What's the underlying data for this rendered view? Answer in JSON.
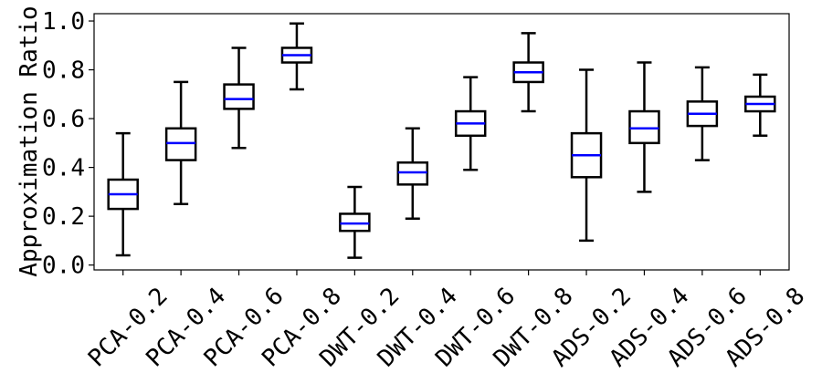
{
  "chart_data": {
    "type": "box",
    "title": "",
    "xlabel": "",
    "ylabel": "Approximation Ratio",
    "ylim": [
      -0.02,
      1.03
    ],
    "yticks": [
      0.0,
      0.2,
      0.4,
      0.6,
      0.8,
      1.0
    ],
    "ytick_labels": [
      "0.0",
      "0.2",
      "0.4",
      "0.6",
      "0.8",
      "1.0"
    ],
    "grid": false,
    "median_color": "#0000ff",
    "box_color": "#000000",
    "categories": [
      "PCA-0.2",
      "PCA-0.4",
      "PCA-0.6",
      "PCA-0.8",
      "DWT-0.2",
      "DWT-0.4",
      "DWT-0.6",
      "DWT-0.8",
      "ADS-0.2",
      "ADS-0.4",
      "ADS-0.6",
      "ADS-0.8"
    ],
    "boxes": [
      {
        "whislo": 0.04,
        "q1": 0.23,
        "med": 0.29,
        "q3": 0.35,
        "whishi": 0.54
      },
      {
        "whislo": 0.25,
        "q1": 0.43,
        "med": 0.5,
        "q3": 0.56,
        "whishi": 0.75
      },
      {
        "whislo": 0.48,
        "q1": 0.64,
        "med": 0.68,
        "q3": 0.74,
        "whishi": 0.89
      },
      {
        "whislo": 0.72,
        "q1": 0.83,
        "med": 0.86,
        "q3": 0.89,
        "whishi": 0.99
      },
      {
        "whislo": 0.03,
        "q1": 0.14,
        "med": 0.17,
        "q3": 0.21,
        "whishi": 0.32
      },
      {
        "whislo": 0.19,
        "q1": 0.33,
        "med": 0.38,
        "q3": 0.42,
        "whishi": 0.56
      },
      {
        "whislo": 0.39,
        "q1": 0.53,
        "med": 0.58,
        "q3": 0.63,
        "whishi": 0.77
      },
      {
        "whislo": 0.63,
        "q1": 0.75,
        "med": 0.79,
        "q3": 0.83,
        "whishi": 0.95
      },
      {
        "whislo": 0.1,
        "q1": 0.36,
        "med": 0.45,
        "q3": 0.54,
        "whishi": 0.8
      },
      {
        "whislo": 0.3,
        "q1": 0.5,
        "med": 0.56,
        "q3": 0.63,
        "whishi": 0.83
      },
      {
        "whislo": 0.43,
        "q1": 0.57,
        "med": 0.62,
        "q3": 0.67,
        "whishi": 0.81
      },
      {
        "whislo": 0.53,
        "q1": 0.63,
        "med": 0.66,
        "q3": 0.69,
        "whishi": 0.78
      }
    ]
  }
}
